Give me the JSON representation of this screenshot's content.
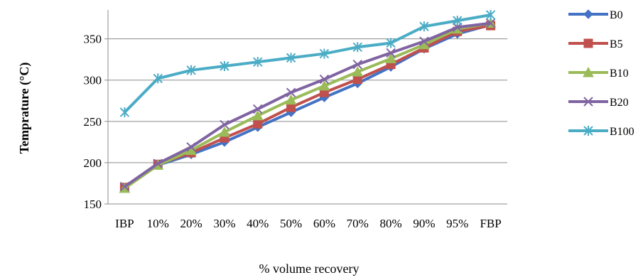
{
  "chart_data": {
    "type": "line",
    "title": "",
    "xlabel": "% volume recovery",
    "ylabel": "Temprature (°C)",
    "categories": [
      "IBP",
      "10%",
      "20%",
      "30%",
      "40%",
      "50%",
      "60%",
      "70%",
      "80%",
      "90%",
      "95%",
      "FBP"
    ],
    "ylim": [
      150,
      385
    ],
    "yticks": [
      150,
      200,
      250,
      300,
      350
    ],
    "grid": "horizontal",
    "legend_position": "right",
    "series": [
      {
        "name": "B0",
        "color": "#4472C4",
        "marker": "diamond",
        "values": [
          170,
          197,
          210,
          225,
          243,
          261,
          279,
          296,
          316,
          338,
          356,
          367
        ]
      },
      {
        "name": "B5",
        "color": "#C0504D",
        "marker": "square",
        "values": [
          170,
          198,
          212,
          230,
          247,
          267,
          285,
          301,
          319,
          339,
          359,
          366
        ]
      },
      {
        "name": "B10",
        "color": "#9BBB59",
        "marker": "triangle",
        "values": [
          169,
          197,
          215,
          237,
          257,
          276,
          293,
          310,
          326,
          343,
          362,
          369
        ]
      },
      {
        "name": "B20",
        "color": "#8064A2",
        "marker": "x",
        "values": [
          171,
          199,
          219,
          246,
          265,
          285,
          301,
          319,
          333,
          347,
          364,
          369
        ]
      },
      {
        "name": "B100",
        "color": "#4BACC6",
        "marker": "asterisk",
        "values": [
          261,
          302,
          312,
          317,
          322,
          327,
          332,
          340,
          345,
          365,
          372,
          379
        ]
      }
    ]
  }
}
